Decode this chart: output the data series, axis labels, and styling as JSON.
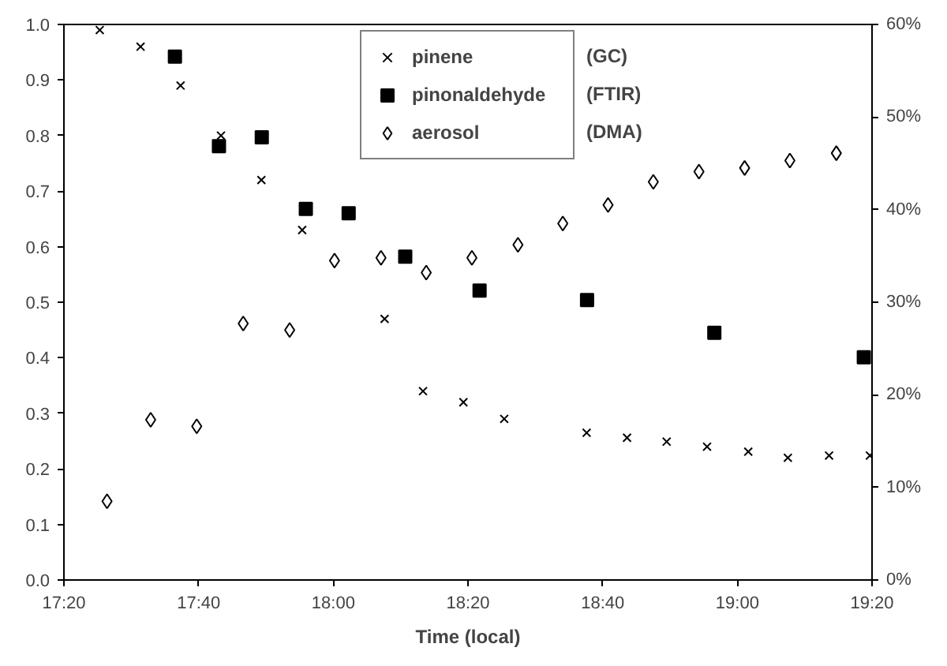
{
  "chart_data": {
    "type": "scatter",
    "xlabel": "Time (local)",
    "xlim": [
      17.3333,
      19.3333
    ],
    "xticks": [
      {
        "value": 17.3333,
        "label": "17:20"
      },
      {
        "value": 17.6667,
        "label": "17:40"
      },
      {
        "value": 18.0,
        "label": "18:00"
      },
      {
        "value": 18.3333,
        "label": "18:20"
      },
      {
        "value": 18.6667,
        "label": "18:40"
      },
      {
        "value": 19.0,
        "label": "19:00"
      },
      {
        "value": 19.3333,
        "label": "19:20"
      }
    ],
    "ylim": [
      0,
      1
    ],
    "yticks": [
      {
        "value": 0,
        "label": "0.0"
      },
      0.1,
      0.2,
      0.3,
      0.4,
      0.5,
      0.6,
      0.7,
      0.8,
      0.9,
      {
        "value": 1,
        "label": "1.0"
      }
    ],
    "y2lim": [
      0,
      60
    ],
    "y2ticks": [
      {
        "value": 0,
        "label": "0%"
      },
      {
        "value": 10,
        "label": "10%"
      },
      {
        "value": 20,
        "label": "20%"
      },
      {
        "value": 30,
        "label": "30%"
      },
      {
        "value": 40,
        "label": "40%"
      },
      {
        "value": 50,
        "label": "50%"
      },
      {
        "value": 60,
        "label": "60%"
      }
    ],
    "grid": false,
    "legend": "top",
    "annotations": [
      "(GC)",
      "(FTIR)",
      "(DMA)"
    ],
    "series": [
      {
        "name": "pinene",
        "color": "#000000",
        "marker": "cross",
        "x": [
          17.422,
          17.523,
          17.622,
          17.722,
          17.822,
          17.923,
          18.127,
          18.222,
          18.322,
          18.423,
          18.627,
          18.727,
          18.825,
          18.925,
          19.027,
          19.125,
          19.227,
          19.328
        ],
        "values": [
          0.99,
          0.96,
          0.89,
          0.8,
          0.72,
          0.63,
          0.47,
          0.34,
          0.32,
          0.29,
          0.265,
          0.256,
          0.249,
          0.24,
          0.231,
          0.22,
          0.224,
          0.224
        ]
      },
      {
        "name": "pinonaldehyde",
        "color": "#000000",
        "marker": "square",
        "x": [
          17.608,
          17.717,
          17.823,
          17.932,
          18.038,
          18.178,
          18.362,
          18.628,
          18.943,
          19.313
        ],
        "values": [
          0.942,
          0.781,
          0.797,
          0.668,
          0.66,
          0.582,
          0.521,
          0.504,
          0.445,
          0.401
        ]
      },
      {
        "name": "aerosol",
        "color": "#000000",
        "marker": "diamond",
        "axis": "y2",
        "x": [
          17.44,
          17.548,
          17.662,
          17.777,
          17.892,
          18.003,
          18.118,
          18.23,
          18.343,
          18.457,
          18.568,
          18.68,
          18.792,
          18.905,
          19.018,
          19.13,
          19.245
        ],
        "values": [
          8.5,
          17.3,
          16.6,
          27.7,
          27.0,
          34.5,
          34.8,
          33.2,
          34.8,
          36.2,
          38.5,
          40.5,
          43.0,
          44.1,
          44.5,
          45.3,
          46.1
        ]
      }
    ]
  }
}
